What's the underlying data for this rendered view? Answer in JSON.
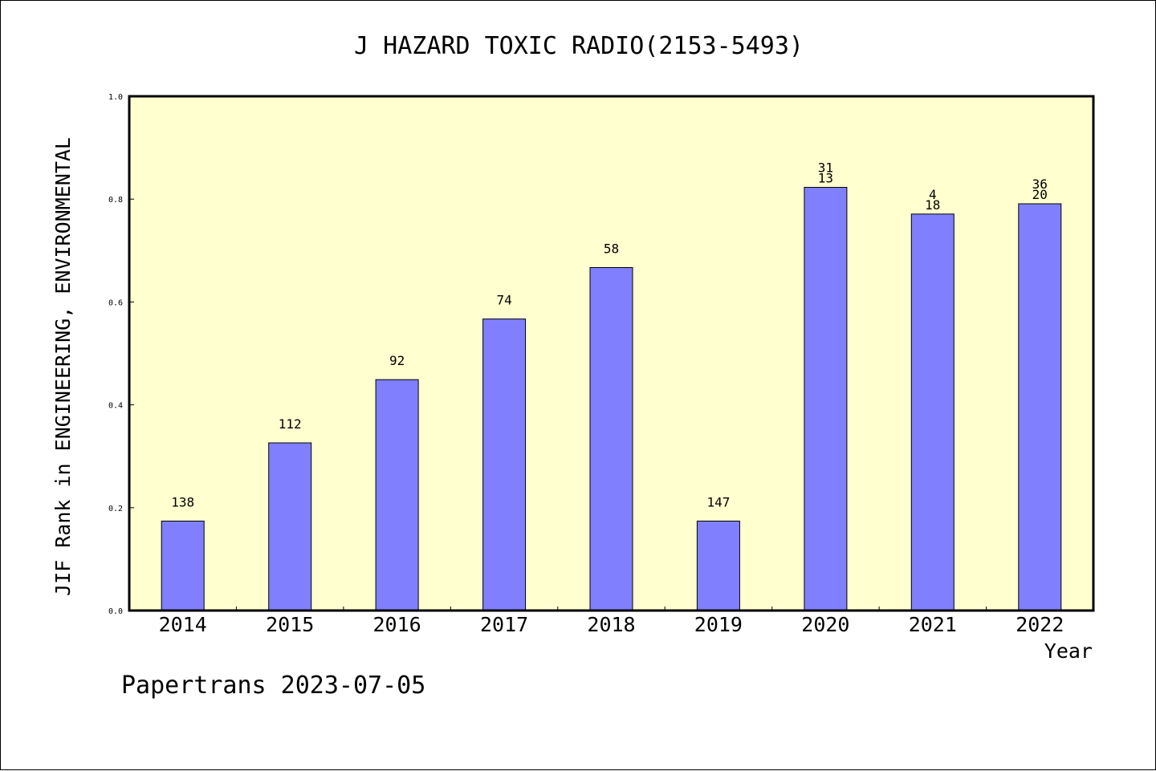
{
  "chart_data": {
    "type": "bar",
    "title": "J HAZARD TOXIC RADIO(2153-5493)",
    "xlabel": "Year",
    "ylabel": "JIF Rank in ENGINEERING, ENVIRONMENTAL",
    "ylim": [
      0,
      1.0
    ],
    "yticks": [
      "0.0",
      "0.2",
      "0.4",
      "0.6",
      "0.8",
      "1.0"
    ],
    "categories": [
      "2014",
      "2015",
      "2016",
      "2017",
      "2018",
      "2019",
      "2020",
      "2021",
      "2022"
    ],
    "values": [
      0.174,
      0.326,
      0.449,
      0.567,
      0.667,
      0.174,
      0.823,
      0.771,
      0.791
    ],
    "labels_upper": [
      "",
      "",
      "",
      "",
      "",
      "",
      "31",
      "4",
      "36"
    ],
    "labels_lower": [
      "138",
      "112",
      "92",
      "74",
      "58",
      "147",
      "13",
      "18",
      "20"
    ],
    "bar_color": "#8080ff",
    "plot_background": "#ffffd0",
    "grid": false
  },
  "footer": "Papertrans 2023-07-05"
}
